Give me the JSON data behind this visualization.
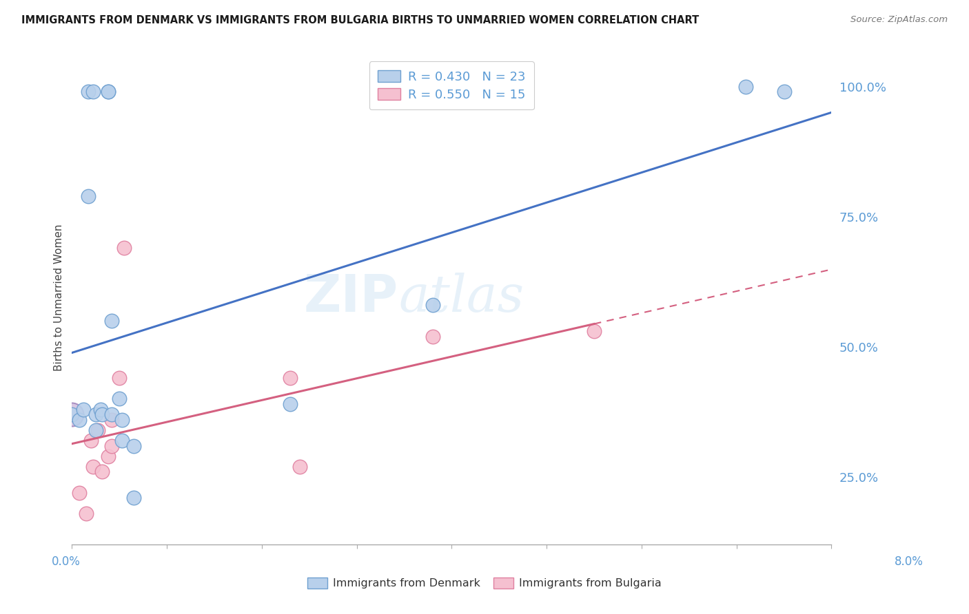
{
  "title": "IMMIGRANTS FROM DENMARK VS IMMIGRANTS FROM BULGARIA BIRTHS TO UNMARRIED WOMEN CORRELATION CHART",
  "source": "Source: ZipAtlas.com",
  "ylabel": "Births to Unmarried Women",
  "xlim": [
    0.0,
    8.0
  ],
  "ylim": [
    12.0,
    107.0
  ],
  "y_ticks": [
    25.0,
    50.0,
    75.0,
    100.0
  ],
  "x_ticks": [
    0.0,
    1.0,
    2.0,
    3.0,
    4.0,
    5.0,
    6.0,
    7.0,
    8.0
  ],
  "denmark_x": [
    0.0,
    0.08,
    0.12,
    0.17,
    0.17,
    0.22,
    0.25,
    0.25,
    0.3,
    0.32,
    0.38,
    0.38,
    0.42,
    0.42,
    0.5,
    0.53,
    0.53,
    0.65,
    0.65,
    2.3,
    3.8,
    7.1,
    7.5
  ],
  "denmark_y": [
    37.0,
    36.0,
    38.0,
    79.0,
    99.0,
    99.0,
    34.0,
    37.0,
    38.0,
    37.0,
    99.0,
    99.0,
    55.0,
    37.0,
    40.0,
    36.0,
    32.0,
    31.0,
    21.0,
    39.0,
    58.0,
    100.0,
    99.0
  ],
  "denmark_R": 0.43,
  "denmark_N": 23,
  "bulgaria_x": [
    0.08,
    0.15,
    0.2,
    0.22,
    0.27,
    0.32,
    0.38,
    0.42,
    0.42,
    0.5,
    0.55,
    2.3,
    2.4,
    3.8,
    5.5
  ],
  "bulgaria_y": [
    22.0,
    18.0,
    32.0,
    27.0,
    34.0,
    26.0,
    29.0,
    31.0,
    36.0,
    44.0,
    69.0,
    44.0,
    27.0,
    52.0,
    53.0
  ],
  "bulgaria_R": 0.55,
  "bulgaria_N": 15,
  "denmark_color": "#b8d0eb",
  "denmark_edge_color": "#6fa0d0",
  "denmark_line_color": "#4472c4",
  "bulgaria_color": "#f5c0d0",
  "bulgaria_edge_color": "#e080a0",
  "bulgaria_line_color": "#d46080",
  "background_color": "#ffffff",
  "grid_color": "#cccccc",
  "axis_color": "#5b9bd5",
  "watermark_color": "#d0e4f5",
  "watermark_alpha": 0.5
}
